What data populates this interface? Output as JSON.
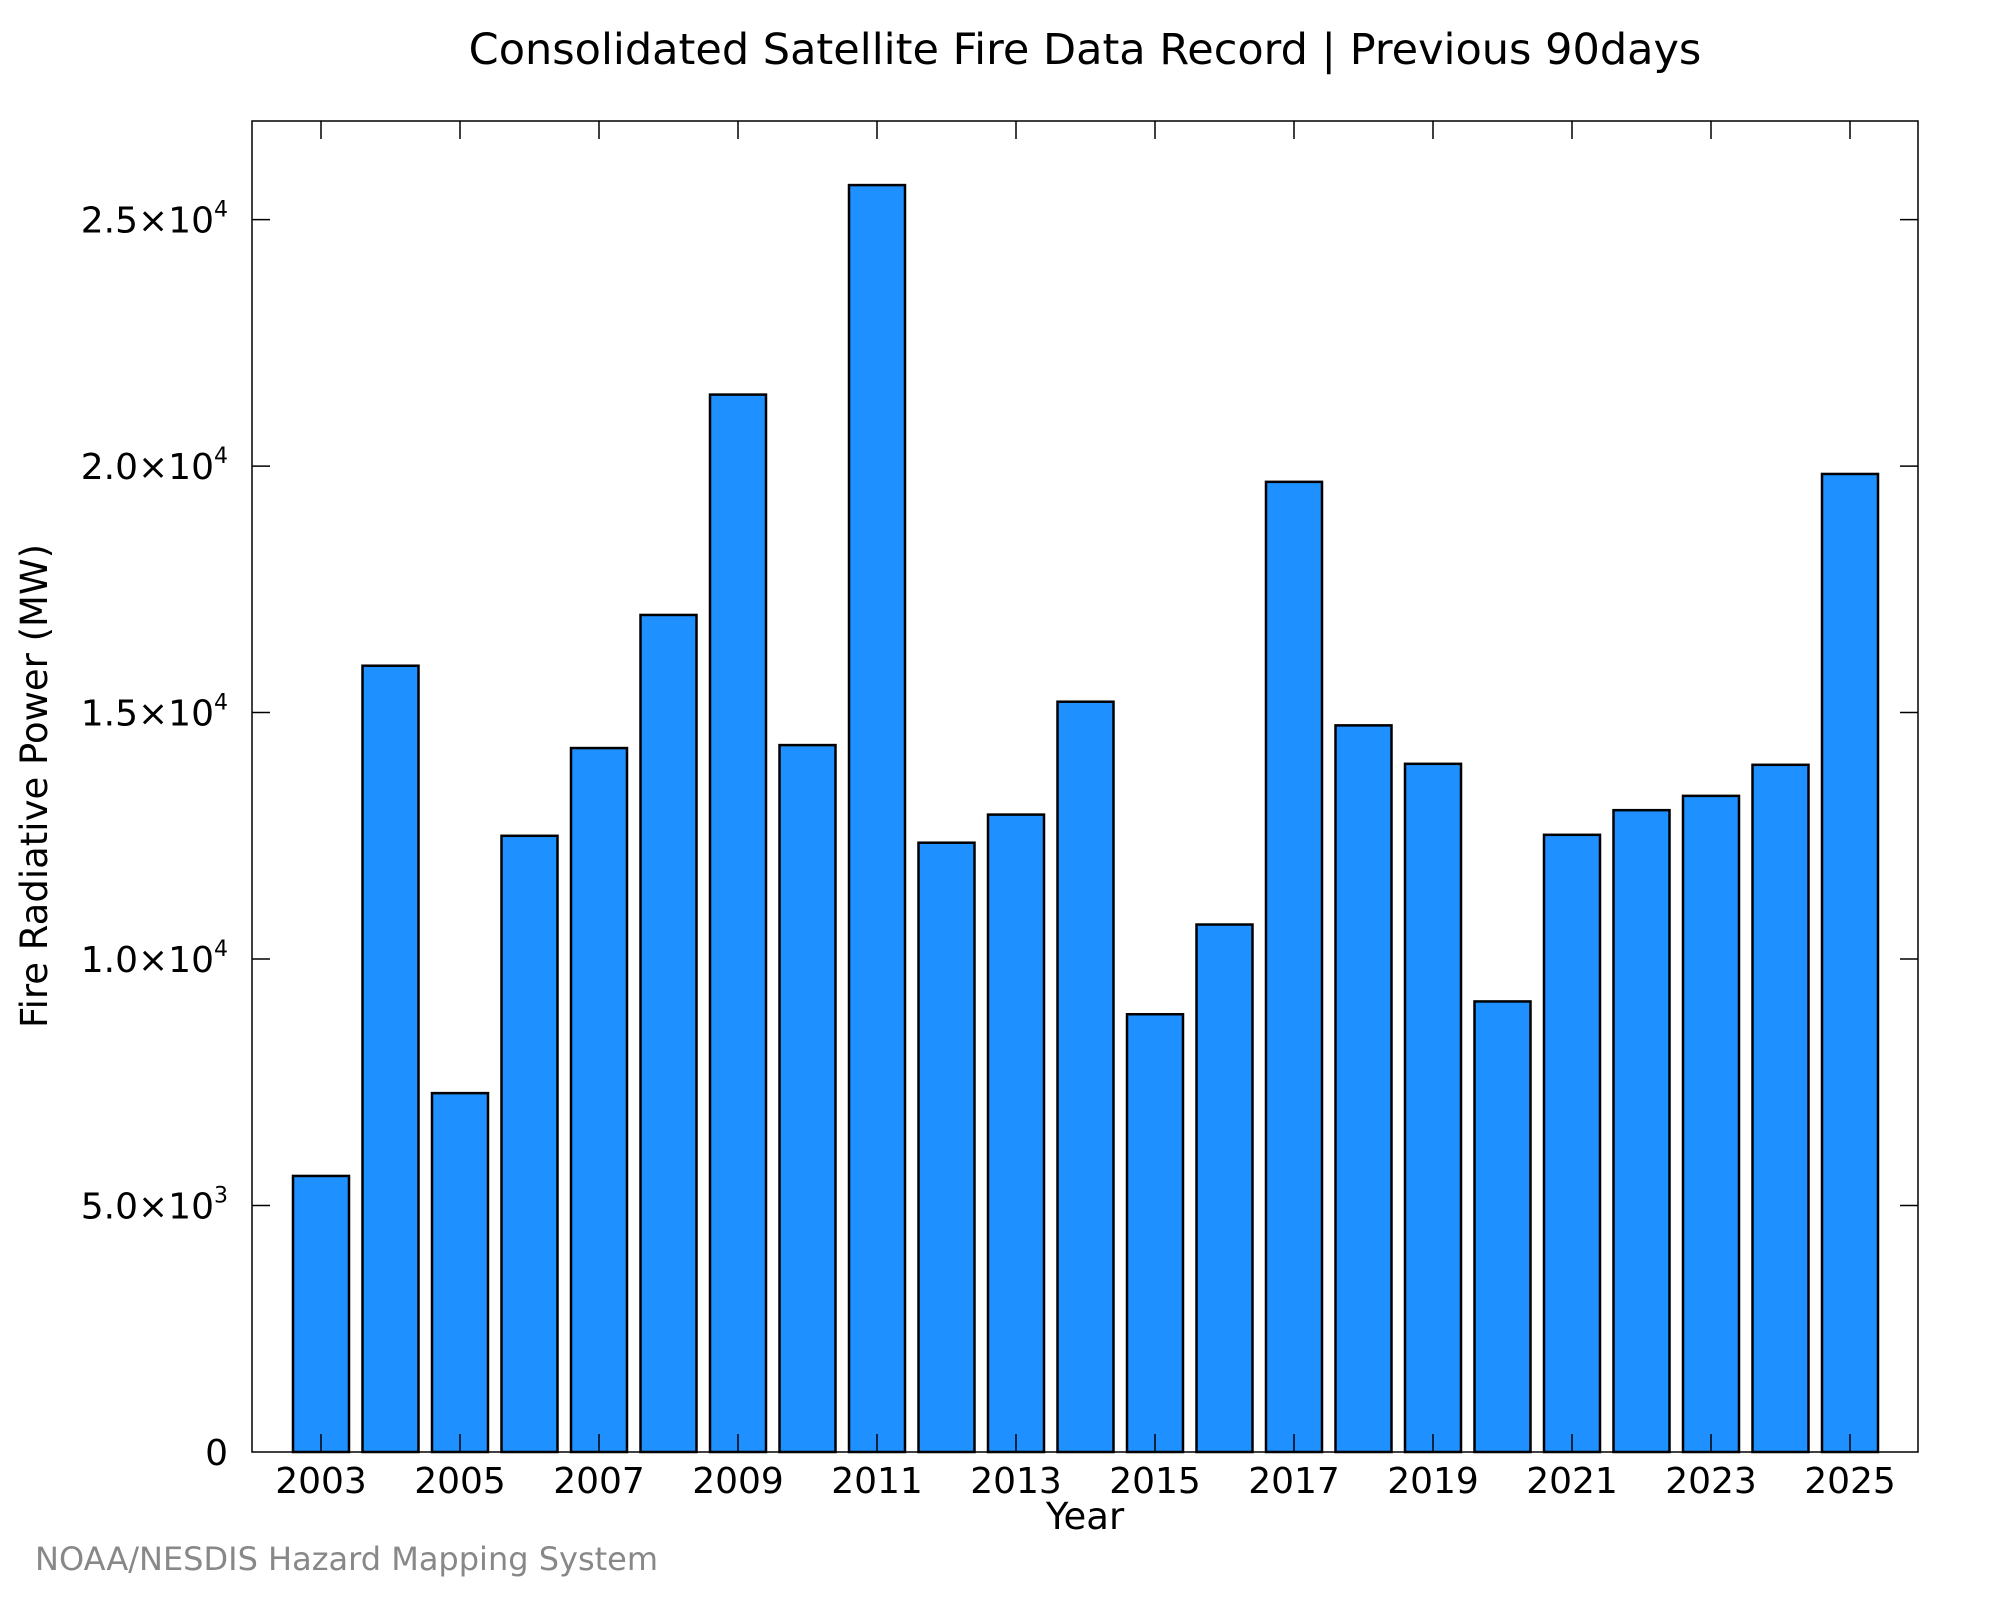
{
  "chart_data": {
    "type": "bar",
    "title": "Consolidated Satellite Fire Data Record | Previous 90days",
    "xlabel": "Year",
    "ylabel": "Fire Radiative Power (MW)",
    "categories": [
      "2003",
      "2004",
      "2005",
      "2006",
      "2007",
      "2008",
      "2009",
      "2010",
      "2011",
      "2012",
      "2013",
      "2014",
      "2015",
      "2016",
      "2017",
      "2018",
      "2019",
      "2020",
      "2021",
      "2022",
      "2023",
      "2024",
      "2025"
    ],
    "values": [
      5600,
      15950,
      7280,
      12500,
      14280,
      16980,
      21450,
      14340,
      25700,
      12360,
      12930,
      15220,
      8880,
      10700,
      19680,
      14740,
      13960,
      9140,
      12520,
      13020,
      13310,
      13940,
      19840
    ],
    "x_tick_labels": [
      "2003",
      "2005",
      "2007",
      "2009",
      "2011",
      "2013",
      "2015",
      "2017",
      "2019",
      "2021",
      "2023",
      "2025"
    ],
    "y_ticks": [
      {
        "value": 0,
        "mantissa": "0",
        "exponent": ""
      },
      {
        "value": 5000,
        "mantissa": "5.0×10",
        "exponent": "3"
      },
      {
        "value": 10000,
        "mantissa": "1.0×10",
        "exponent": "4"
      },
      {
        "value": 15000,
        "mantissa": "1.5×10",
        "exponent": "4"
      },
      {
        "value": 20000,
        "mantissa": "2.0×10",
        "exponent": "4"
      },
      {
        "value": 25000,
        "mantissa": "2.5×10",
        "exponent": "4"
      }
    ],
    "ylim": [
      0,
      27000
    ],
    "grid": false,
    "bar_color": "#1e90ff",
    "bar_edge_color": "#000000"
  },
  "footer": {
    "credit": "NOAA/NESDIS Hazard Mapping System"
  }
}
